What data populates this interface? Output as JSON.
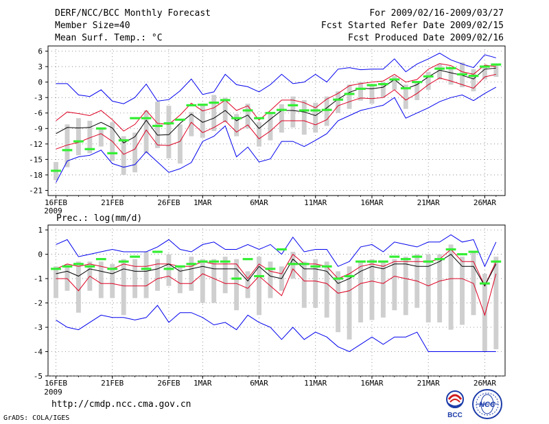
{
  "header": {
    "title": "DERF/NCC/BCC Monthly Forecast",
    "member_size": "Member Size=40",
    "variable": "Mean Surf. Temp.: °C",
    "period": "For 2009/02/16-2009/03/27",
    "refer_date": "Fcst Started Refer Date 2009/02/15",
    "produced_date": "Fcst Produced Date 2009/02/16"
  },
  "footer": {
    "url": "http://cmdp.ncc.cma.gov.cn",
    "grads": "GrADS: COLA/IGES",
    "logo_bcc": "BCC",
    "logo_ncc": "NCC"
  },
  "colors": {
    "envelope": "#0000ee",
    "spread": "#dd0022",
    "mean": "#000000",
    "box": "#cfcfcf",
    "median": "#33ee33",
    "grid": "#7a7a7a"
  },
  "chart_data": [
    {
      "type": "box",
      "title": "Mean Surf. Temp.: °C",
      "ylim": [
        -22,
        7
      ],
      "yticks": [
        6,
        3,
        0,
        -3,
        -6,
        -9,
        -12,
        -15,
        -18,
        -21
      ],
      "xlim": [
        15.3,
        55.8
      ],
      "date_ticks": [
        {
          "day": 16,
          "label": "16FEB",
          "sub": "2009"
        },
        {
          "day": 21,
          "label": "21FEB"
        },
        {
          "day": 26,
          "label": "26FEB"
        },
        {
          "day": 29,
          "label": "1MAR"
        },
        {
          "day": 34,
          "label": "6MAR"
        },
        {
          "day": 39,
          "label": "11MAR"
        },
        {
          "day": 44,
          "label": "16MAR"
        },
        {
          "day": 49,
          "label": "21MAR"
        },
        {
          "day": 54,
          "label": "26MAR"
        }
      ],
      "days": [
        16,
        17,
        18,
        19,
        20,
        21,
        22,
        23,
        24,
        25,
        26,
        27,
        28,
        29,
        30,
        31,
        32,
        33,
        34,
        35,
        36,
        37,
        38,
        39,
        40,
        41,
        42,
        43,
        44,
        45,
        46,
        47,
        48,
        49,
        50,
        51,
        52,
        53,
        54,
        55
      ],
      "max": [
        -0.3,
        -0.3,
        -2.5,
        -2.8,
        -1.5,
        -3.7,
        -4.2,
        -3.0,
        -0.4,
        -3.7,
        -3.4,
        -1.7,
        0.6,
        -2.4,
        -1.9,
        1.5,
        -0.5,
        -0.9,
        -1.9,
        -0.5,
        1.5,
        -0.3,
        0,
        1.5,
        0,
        2.5,
        2.8,
        2.4,
        2.5,
        2.5,
        4.5,
        2.0,
        3.5,
        4.5,
        5.6,
        4.3,
        3.5,
        2.8,
        5.3,
        4.7
      ],
      "upper": [
        -7.5,
        -5.8,
        -6.1,
        -6.5,
        -5.5,
        -7.3,
        -9.5,
        -8.2,
        -5.5,
        -8.0,
        -8.2,
        -6.4,
        -4.1,
        -5.6,
        -5.0,
        -3.5,
        -5.5,
        -4.6,
        -7.4,
        -5.5,
        -3.5,
        -3.5,
        -4.0,
        -5.0,
        -3.3,
        -2.2,
        -0.7,
        -0.3,
        0,
        0.2,
        1.5,
        0,
        0.5,
        2.5,
        3.6,
        3.2,
        2.0,
        1.5,
        3.3,
        3.0
      ],
      "mean": [
        -10.0,
        -8.8,
        -8.9,
        -8.8,
        -7.8,
        -8.9,
        -11.8,
        -10.6,
        -7.4,
        -10.3,
        -10.2,
        -8.0,
        -6.2,
        -7.8,
        -7.0,
        -5.5,
        -7.5,
        -6.4,
        -9.0,
        -7.2,
        -5.5,
        -5.5,
        -5.8,
        -6.5,
        -5.0,
        -3.3,
        -2.0,
        -1.2,
        -1.3,
        -1.0,
        0.5,
        -1.3,
        -0.5,
        1.0,
        2.3,
        1.8,
        1.3,
        0.6,
        2.5,
        2.7
      ],
      "lower": [
        -13.0,
        -12.2,
        -11.7,
        -10.8,
        -10.0,
        -11.5,
        -14.0,
        -13.0,
        -9.3,
        -12.2,
        -12.3,
        -11.5,
        -7.8,
        -9.8,
        -8.8,
        -7.5,
        -9.7,
        -8.3,
        -11.0,
        -9.5,
        -7.5,
        -7.5,
        -7.5,
        -8.3,
        -7.3,
        -4.6,
        -3.8,
        -3.1,
        -3.2,
        -3.0,
        -1.5,
        -3.5,
        -2.2,
        -0.5,
        0.8,
        0.2,
        -0.5,
        -1.2,
        1.0,
        1.5
      ],
      "min": [
        -19.5,
        -15.3,
        -14.5,
        -14.2,
        -13.2,
        -15.8,
        -16.5,
        -16.0,
        -13.5,
        -15.5,
        -17.5,
        -16.8,
        -15.6,
        -11.5,
        -10.5,
        -8.5,
        -14.5,
        -12.6,
        -15.5,
        -14.9,
        -11.5,
        -11.5,
        -12.5,
        -11.3,
        -10.0,
        -7.5,
        -6.5,
        -5.5,
        -5.0,
        -4.5,
        -3.0,
        -7.0,
        -6.0,
        -5.0,
        -3.8,
        -3.0,
        -2.5,
        -3.6,
        -2.2,
        -1.0
      ],
      "box_top": [
        -15.5,
        -8.2,
        -7.0,
        -7.5,
        -9.0,
        -7.8,
        -10.5,
        -9.8,
        -5.5,
        -3.8,
        -4.6,
        -8.2,
        -5.8,
        -4.3,
        -2.5,
        -3.0,
        -6.2,
        -4.2,
        -7.8,
        -6.0,
        -4.3,
        -2.8,
        -3.5,
        -4.0,
        -2.8,
        -1.8,
        -0.5,
        0,
        -0.5,
        0,
        1.2,
        -0.5,
        0,
        2.0,
        3.5,
        2.8,
        3.8,
        2.5,
        2.8,
        3.5
      ],
      "box_bot": [
        -19.0,
        -16.5,
        -14.2,
        -13.8,
        -12.5,
        -15.3,
        -18.0,
        -17.5,
        -13.8,
        -12.8,
        -14.8,
        -15.8,
        -10.5,
        -10.8,
        -9.5,
        -7.8,
        -10.5,
        -9.0,
        -12.5,
        -11.3,
        -9.8,
        -8.8,
        -10.2,
        -9.8,
        -8.5,
        -6.0,
        -5.2,
        -3.6,
        -4.2,
        -3.0,
        -1.5,
        -5.2,
        -3.5,
        -1.5,
        0.5,
        -0.5,
        -1.0,
        -1.8,
        0.5,
        1.0
      ],
      "median": [
        -17.2,
        -13.2,
        -11.5,
        -13.0,
        -9.0,
        -13.8,
        -11.3,
        -7.0,
        -7.0,
        -8.5,
        -8.0,
        -7.3,
        -4.5,
        -4.4,
        -4.0,
        -3.5,
        -7.0,
        -5.5,
        -7.0,
        -6.0,
        -5.4,
        -4.5,
        -5.5,
        -5.5,
        -5.4,
        -3.4,
        -2.3,
        -1.3,
        -0.6,
        -0.4,
        0.5,
        -1.2,
        0,
        1.1,
        2.6,
        2.7,
        1.5,
        1.2,
        3.0,
        3.4
      ]
    },
    {
      "type": "box",
      "title": "Prec.: log(mm/d)",
      "ylim": [
        -5,
        1.2
      ],
      "yticks": [
        1,
        0,
        -1,
        -2,
        -3,
        -4,
        -5
      ],
      "xlim": [
        15.3,
        55.8
      ],
      "date_ticks": [
        {
          "day": 16,
          "label": "16FEB",
          "sub": "2009"
        },
        {
          "day": 21,
          "label": "21FEB"
        },
        {
          "day": 26,
          "label": "26FEB"
        },
        {
          "day": 29,
          "label": "1MAR"
        },
        {
          "day": 34,
          "label": "6MAR"
        },
        {
          "day": 39,
          "label": "11MAR"
        },
        {
          "day": 44,
          "label": "16MAR"
        },
        {
          "day": 49,
          "label": "21MAR"
        },
        {
          "day": 54,
          "label": "26MAR"
        }
      ],
      "days": [
        16,
        17,
        18,
        19,
        20,
        21,
        22,
        23,
        24,
        25,
        26,
        27,
        28,
        29,
        30,
        31,
        32,
        33,
        34,
        35,
        36,
        37,
        38,
        39,
        40,
        41,
        42,
        43,
        44,
        45,
        46,
        47,
        48,
        49,
        50,
        51,
        52,
        53,
        54,
        55
      ],
      "max": [
        0.4,
        0.6,
        -0.1,
        0,
        0.1,
        0.2,
        0.1,
        0.1,
        0.1,
        0.3,
        0.6,
        0.2,
        0.1,
        0.4,
        0.5,
        0.2,
        0.2,
        0.4,
        0.2,
        0.4,
        0,
        0.7,
        0.1,
        0.2,
        0.2,
        -0.5,
        -0.3,
        0.3,
        0.4,
        0.1,
        0.5,
        0.4,
        0.3,
        0.5,
        0.5,
        0.8,
        0.5,
        0.6,
        -0.5,
        0.5
      ],
      "upper": [
        -0.6,
        -0.4,
        -0.5,
        -0.4,
        -0.5,
        -0.6,
        -0.4,
        -0.5,
        -0.5,
        -0.4,
        -0.4,
        -0.5,
        -0.5,
        -0.3,
        -0.4,
        -0.4,
        -0.4,
        -1.0,
        -0.4,
        -0.7,
        -0.8,
        0,
        -0.4,
        -0.4,
        -0.5,
        -1.0,
        -0.8,
        -0.5,
        -0.4,
        -0.5,
        -0.3,
        -0.3,
        -0.3,
        -0.3,
        -0.2,
        0.2,
        -0.3,
        -0.3,
        -1.3,
        -0.3
      ],
      "mean": [
        -0.8,
        -0.7,
        -0.9,
        -0.6,
        -0.7,
        -0.8,
        -0.6,
        -0.7,
        -0.7,
        -0.6,
        -0.4,
        -0.7,
        -0.6,
        -0.5,
        -0.6,
        -0.6,
        -0.6,
        -1.1,
        -0.5,
        -0.9,
        -1.0,
        -0.2,
        -0.6,
        -0.6,
        -0.7,
        -1.2,
        -1.0,
        -0.7,
        -0.5,
        -0.6,
        -0.4,
        -0.4,
        -0.5,
        -0.5,
        -0.3,
        0,
        -0.5,
        -0.5,
        -1.3,
        -0.4
      ],
      "lower": [
        -1.0,
        -1.0,
        -1.5,
        -0.9,
        -1.2,
        -1.2,
        -1.3,
        -1.3,
        -1.3,
        -1.0,
        -0.9,
        -1.2,
        -1.2,
        -0.8,
        -1.0,
        -1.2,
        -1.2,
        -1.4,
        -0.9,
        -1.3,
        -1.7,
        -0.6,
        -1.1,
        -1.1,
        -1.2,
        -1.6,
        -1.5,
        -1.2,
        -1.1,
        -1.2,
        -0.9,
        -1.0,
        -1.1,
        -1.3,
        -1.1,
        -1.0,
        -1.0,
        -1.2,
        -2.5,
        -0.8
      ],
      "min": [
        -2.7,
        -3.0,
        -3.1,
        -2.8,
        -2.5,
        -2.6,
        -2.6,
        -2.7,
        -2.6,
        -2.1,
        -2.8,
        -2.4,
        -2.4,
        -2.6,
        -2.9,
        -2.8,
        -3.1,
        -2.5,
        -2.8,
        -3.0,
        -3.5,
        -3.0,
        -3.5,
        -3.2,
        -3.4,
        -3.8,
        -4.0,
        -3.7,
        -3.4,
        -3.7,
        -3.4,
        -3.4,
        -3.2,
        -4.0,
        -4.0,
        -4.0,
        -4.0,
        -4.0,
        -4.0,
        -4.0
      ],
      "box_top": [
        -0.5,
        -0.4,
        -0.3,
        -0.3,
        -0.3,
        -0.4,
        -0.2,
        -0.2,
        0.1,
        -0.2,
        0,
        -0.5,
        -0.1,
        -0.2,
        -0.2,
        -0.1,
        -0.2,
        -0.7,
        -0.1,
        -0.3,
        -0.5,
        0.1,
        -0.3,
        -0.2,
        -0.3,
        -0.7,
        -0.5,
        -0.3,
        -0.2,
        -0.3,
        -0.2,
        -0.1,
        0,
        0,
        0,
        0.4,
        -0.1,
        0.1,
        -0.8,
        -0.1
      ],
      "box_bot": [
        -1.8,
        -1.5,
        -2.4,
        -1.5,
        -1.8,
        -1.8,
        -2.5,
        -1.8,
        -1.8,
        -1.5,
        -1.3,
        -1.6,
        -1.5,
        -2.0,
        -2.0,
        -1.6,
        -2.3,
        -1.8,
        -2.5,
        -1.8,
        -1.5,
        -1.0,
        -2.2,
        -2.2,
        -2.6,
        -3.2,
        -3.5,
        -2.8,
        -2.7,
        -2.6,
        -2.3,
        -2.5,
        -2.2,
        -2.8,
        -2.8,
        -3.1,
        -2.9,
        -2.5,
        -4.0,
        -3.9
      ],
      "median": [
        -0.6,
        -0.5,
        -0.4,
        -0.5,
        -0.2,
        -0.6,
        -0.3,
        -0.1,
        -0.6,
        0.1,
        -0.6,
        -0.5,
        -0.4,
        -0.3,
        -0.3,
        -0.3,
        -1.0,
        -0.2,
        -0.9,
        -0.6,
        0.2,
        -0.4,
        -0.4,
        -0.5,
        -0.5,
        -1.0,
        -0.9,
        -0.3,
        -0.3,
        -0.3,
        -0.1,
        -0.2,
        -0.1,
        -0.3,
        -0.2,
        0.2,
        0,
        0.1,
        -1.2,
        -0.3
      ]
    }
  ]
}
